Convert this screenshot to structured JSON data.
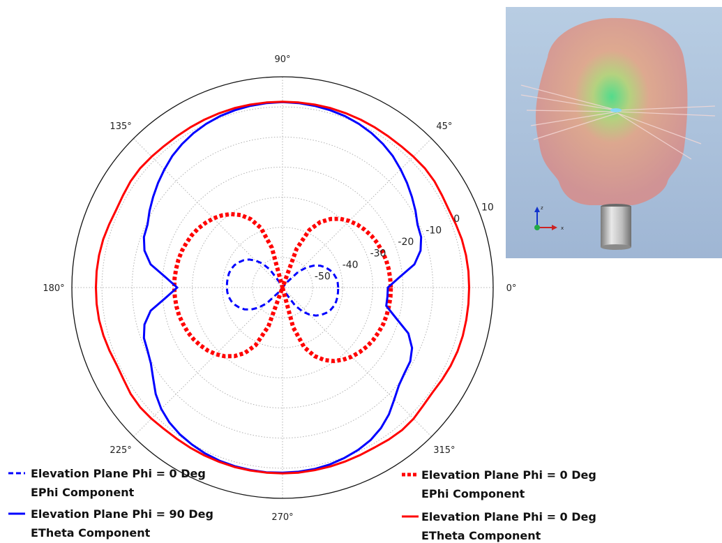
{
  "chart_data": {
    "type": "polar-line",
    "title": "",
    "angular_ticks": [
      "0°",
      "45°",
      "90°",
      "135°",
      "180°",
      "225°",
      "270°",
      "315°"
    ],
    "radial_ticks": [
      10,
      0,
      -10,
      -20,
      -30,
      -40,
      -50
    ],
    "rlim": [
      -60,
      10
    ],
    "grid": true,
    "angle_step_deg": 5,
    "series": [
      {
        "name": "Elevation Plane Phi = 0 Deg EPhi Component",
        "color": "#0000ff",
        "style": "dashed",
        "values": [
          -41.5,
          -41.6,
          -41.9,
          -42.4,
          -43.2,
          -44.2,
          -45.5,
          -47.3,
          -49.6,
          -52.7,
          -57.8,
          -60.0,
          -60.0,
          -60.0,
          -60.0,
          -60.0,
          -60.0,
          -60.0,
          -60.0,
          -60.0,
          -60.0,
          -60.0,
          -60.0,
          -60.0,
          -57.8,
          -52.7,
          -49.6,
          -47.3,
          -45.5,
          -44.2,
          -43.2,
          -42.4,
          -41.9,
          -41.6,
          -41.5,
          -41.5,
          -41.5,
          -41.6,
          -41.9,
          -42.4,
          -43.2,
          -44.2,
          -45.5,
          -47.3,
          -49.6,
          -52.7,
          -57.8,
          -60.0,
          -60.0,
          -60.0,
          -60.0,
          -60.0,
          -60.0,
          -60.0,
          -60.0,
          -60.0,
          -60.0,
          -60.0,
          -60.0,
          -60.0,
          -57.8,
          -52.7,
          -49.6,
          -47.3,
          -45.5,
          -44.2,
          -43.2,
          -42.4,
          -41.9,
          -41.6,
          -41.5,
          -41.5
        ]
      },
      {
        "name": "Elevation Plane Phi = 0 Deg EPhi Component",
        "color": "#ff0000",
        "style": "dotted",
        "values": [
          -24.0,
          -24.1,
          -24.2,
          -24.4,
          -24.8,
          -25.2,
          -25.8,
          -26.6,
          -27.5,
          -28.7,
          -30.2,
          -32.2,
          -34.9,
          -38.9,
          -46.3,
          -60.0,
          -60.0,
          -60.0,
          -60.0,
          -60.0,
          -60.0,
          -46.3,
          -38.9,
          -34.9,
          -32.2,
          -30.2,
          -28.7,
          -27.5,
          -26.6,
          -25.8,
          -25.2,
          -24.8,
          -24.4,
          -24.2,
          -24.1,
          -24.0,
          -24.0,
          -24.1,
          -24.2,
          -24.4,
          -24.8,
          -25.2,
          -25.8,
          -26.6,
          -27.5,
          -28.7,
          -30.2,
          -32.2,
          -34.9,
          -38.9,
          -46.3,
          -60.0,
          -60.0,
          -60.0,
          -60.0,
          -60.0,
          -60.0,
          -46.3,
          -38.9,
          -34.9,
          -32.2,
          -30.2,
          -28.7,
          -27.5,
          -26.6,
          -25.8,
          -25.2,
          -24.8,
          -24.4,
          -24.2,
          -24.1,
          -24.0
        ]
      },
      {
        "name": "Elevation Plane Phi = 90 Deg ETheta Component",
        "color": "#0000ff",
        "style": "solid",
        "values": [
          -25.0,
          -21.0,
          -15.5,
          -12.5,
          -11.0,
          -10.5,
          -9.0,
          -7.5,
          -6.0,
          -4.5,
          -3.0,
          -1.8,
          -0.8,
          0.0,
          0.6,
          1.0,
          1.3,
          1.5,
          1.6,
          1.5,
          1.3,
          1.0,
          0.6,
          0.0,
          -0.8,
          -1.8,
          -3.0,
          -4.5,
          -6.0,
          -7.5,
          -9.0,
          -10.5,
          -11.0,
          -12.5,
          -15.5,
          -21.0,
          -25.0,
          -21.0,
          -15.5,
          -12.5,
          -11.0,
          -10.5,
          -9.5,
          -7.5,
          -5.0,
          -3.0,
          -1.5,
          -0.5,
          0.2,
          0.8,
          1.2,
          1.4,
          1.5,
          1.6,
          1.5,
          1.4,
          1.2,
          0.8,
          0.2,
          -0.5,
          -1.5,
          -3.0,
          -5.0,
          -7.5,
          -9.5,
          -10.5,
          -11.0,
          -12.5,
          -15.5,
          -21.0,
          -25.0,
          -25.0
        ]
      },
      {
        "name": "Elevation Plane Phi = 0 Deg ETheta Component",
        "color": "#ff0000",
        "style": "solid",
        "values": [
          2.0,
          2.0,
          1.9,
          1.7,
          1.3,
          1.0,
          1.2,
          1.6,
          1.7,
          1.5,
          1.3,
          1.3,
          1.4,
          1.5,
          1.6,
          1.7,
          1.7,
          1.7,
          1.7,
          1.7,
          1.7,
          1.7,
          1.6,
          1.5,
          1.4,
          1.3,
          1.3,
          1.5,
          1.7,
          1.6,
          1.2,
          1.0,
          1.3,
          1.7,
          1.9,
          2.0,
          2.0,
          2.0,
          1.9,
          1.6,
          1.2,
          0.8,
          1.0,
          1.6,
          1.8,
          1.6,
          1.3,
          1.3,
          1.4,
          1.5,
          1.6,
          1.7,
          1.7,
          1.7,
          1.7,
          1.7,
          1.6,
          1.5,
          1.4,
          1.3,
          1.3,
          1.6,
          1.8,
          1.6,
          1.0,
          0.8,
          1.2,
          1.6,
          1.9,
          2.0,
          2.0,
          2.0
        ]
      }
    ]
  },
  "legend": [
    {
      "line1": "Elevation Plane Phi = 0 Deg",
      "line2": "EPhi Component"
    },
    {
      "line1": "Elevation Plane Phi = 90 Deg",
      "line2": "ETheta Component"
    },
    {
      "line1": "Elevation Plane Phi = 0 Deg",
      "line2": "EPhi Component"
    },
    {
      "line1": "Elevation Plane Phi = 0 Deg",
      "line2": "ETheta Component"
    }
  ],
  "inset": {
    "description_icon": "3d-radiation-pattern-icon",
    "axes_icon": "xyz-axes-icon",
    "axis_labels": {
      "x": "x",
      "z": "z"
    }
  }
}
